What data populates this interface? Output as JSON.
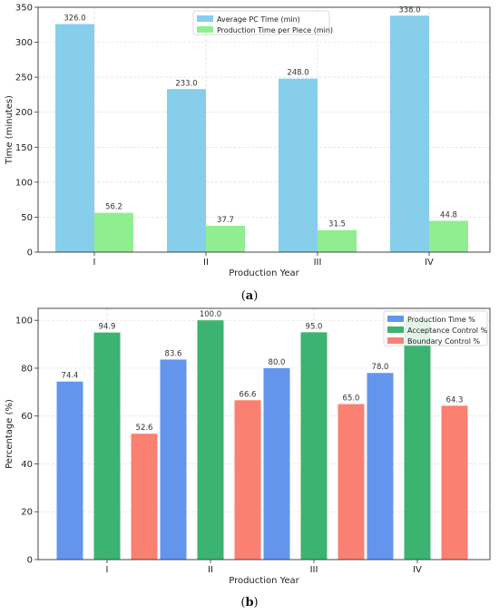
{
  "chart_data": [
    {
      "type": "bar",
      "categories": [
        "I",
        "II",
        "III",
        "IV"
      ],
      "xlabel": "Production Year",
      "ylabel": "Time (minutes)",
      "ylim": [
        0,
        350
      ],
      "yticks": [
        0,
        50,
        100,
        150,
        200,
        250,
        300,
        350
      ],
      "grid": true,
      "legend_position": "top-center",
      "series": [
        {
          "name": "Average PC Time (min)",
          "values": [
            326.0,
            233.0,
            248.0,
            338.0
          ],
          "labels": [
            "326.0",
            "233.0",
            "248.0",
            "338.0"
          ],
          "color": "#87ceeb"
        },
        {
          "name": "Production Time per Piece (min)",
          "values": [
            56.2,
            37.7,
            31.5,
            44.8
          ],
          "labels": [
            "56.2",
            "37.7",
            "31.5",
            "44.8"
          ],
          "color": "#90ee90"
        }
      ],
      "caption_open": "(",
      "caption_letter": "a",
      "caption_close": ")"
    },
    {
      "type": "bar",
      "categories": [
        "I",
        "II",
        "III",
        "IV"
      ],
      "xlabel": "Production Year",
      "ylabel": "Percentage (%)",
      "ylim": [
        0,
        105
      ],
      "yticks": [
        0,
        20,
        40,
        60,
        80,
        100
      ],
      "grid": true,
      "legend_position": "top-right",
      "series": [
        {
          "name": "Production Time %",
          "values": [
            74.4,
            83.6,
            80.0,
            78.0
          ],
          "labels": [
            "74.4",
            "83.6",
            "80.0",
            "78.0"
          ],
          "color": "#6495ed"
        },
        {
          "name": "Acceptance Control %",
          "values": [
            94.9,
            100.0,
            95.0,
            100.0
          ],
          "labels": [
            "94.9",
            "100.0",
            "95.0",
            ""
          ],
          "color": "#3cb371"
        },
        {
          "name": "Boundary Control %",
          "values": [
            52.6,
            66.6,
            65.0,
            64.3
          ],
          "labels": [
            "52.6",
            "66.6",
            "65.0",
            "64.3"
          ],
          "color": "#fa8072"
        }
      ],
      "caption_open": "(",
      "caption_letter": "b",
      "caption_close": ")"
    }
  ]
}
